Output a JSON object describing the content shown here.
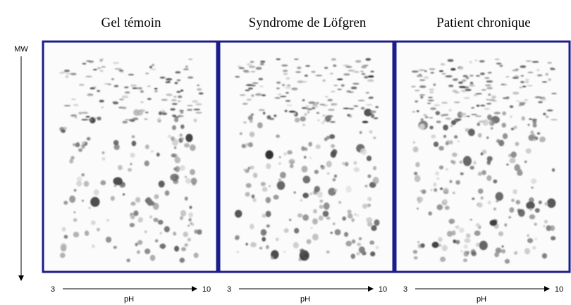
{
  "y_axis_label": "MW",
  "panels": [
    {
      "title": "Gel témoin",
      "ph_min": "3",
      "ph_max": "10",
      "ph_label": "pH"
    },
    {
      "title": "Syndrome de Löfgren",
      "ph_min": "3",
      "ph_max": "10",
      "ph_label": "pH"
    },
    {
      "title": "Patient chronique",
      "ph_min": "3",
      "ph_max": "10",
      "ph_label": "pH"
    }
  ]
}
